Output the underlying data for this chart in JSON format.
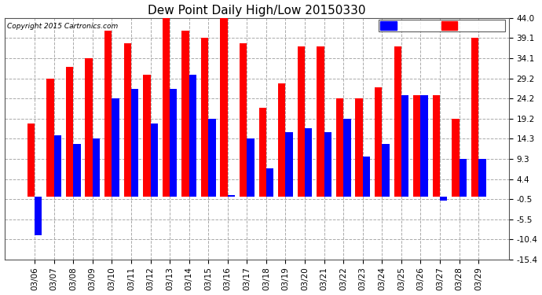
{
  "title": "Dew Point Daily High/Low 20150330",
  "copyright": "Copyright 2015 Cartronics.com",
  "dates": [
    "03/06",
    "03/07",
    "03/08",
    "03/09",
    "03/10",
    "03/11",
    "03/12",
    "03/13",
    "03/14",
    "03/15",
    "03/16",
    "03/17",
    "03/18",
    "03/19",
    "03/20",
    "03/21",
    "03/22",
    "03/23",
    "03/24",
    "03/25",
    "03/26",
    "03/27",
    "03/28",
    "03/29"
  ],
  "high": [
    18.0,
    29.2,
    32.0,
    34.1,
    41.0,
    37.9,
    30.0,
    44.0,
    41.0,
    39.1,
    44.0,
    37.9,
    22.0,
    28.0,
    37.0,
    37.0,
    24.2,
    24.2,
    27.0,
    37.0,
    25.0,
    25.0,
    19.2,
    39.1
  ],
  "low": [
    -9.5,
    15.1,
    13.0,
    14.3,
    24.2,
    26.6,
    18.0,
    26.6,
    30.0,
    19.2,
    0.5,
    14.3,
    7.0,
    16.0,
    17.0,
    16.0,
    19.2,
    10.0,
    13.0,
    25.0,
    25.0,
    -1.0,
    9.3,
    9.3
  ],
  "high_color": "#ff0000",
  "low_color": "#0000ff",
  "bg_color": "#ffffff",
  "ylim_min": -15.4,
  "ylim_max": 44.0,
  "yticks": [
    -15.4,
    -10.4,
    -5.5,
    -0.5,
    4.4,
    9.3,
    14.3,
    19.2,
    24.2,
    29.2,
    34.1,
    39.1,
    44.0
  ]
}
